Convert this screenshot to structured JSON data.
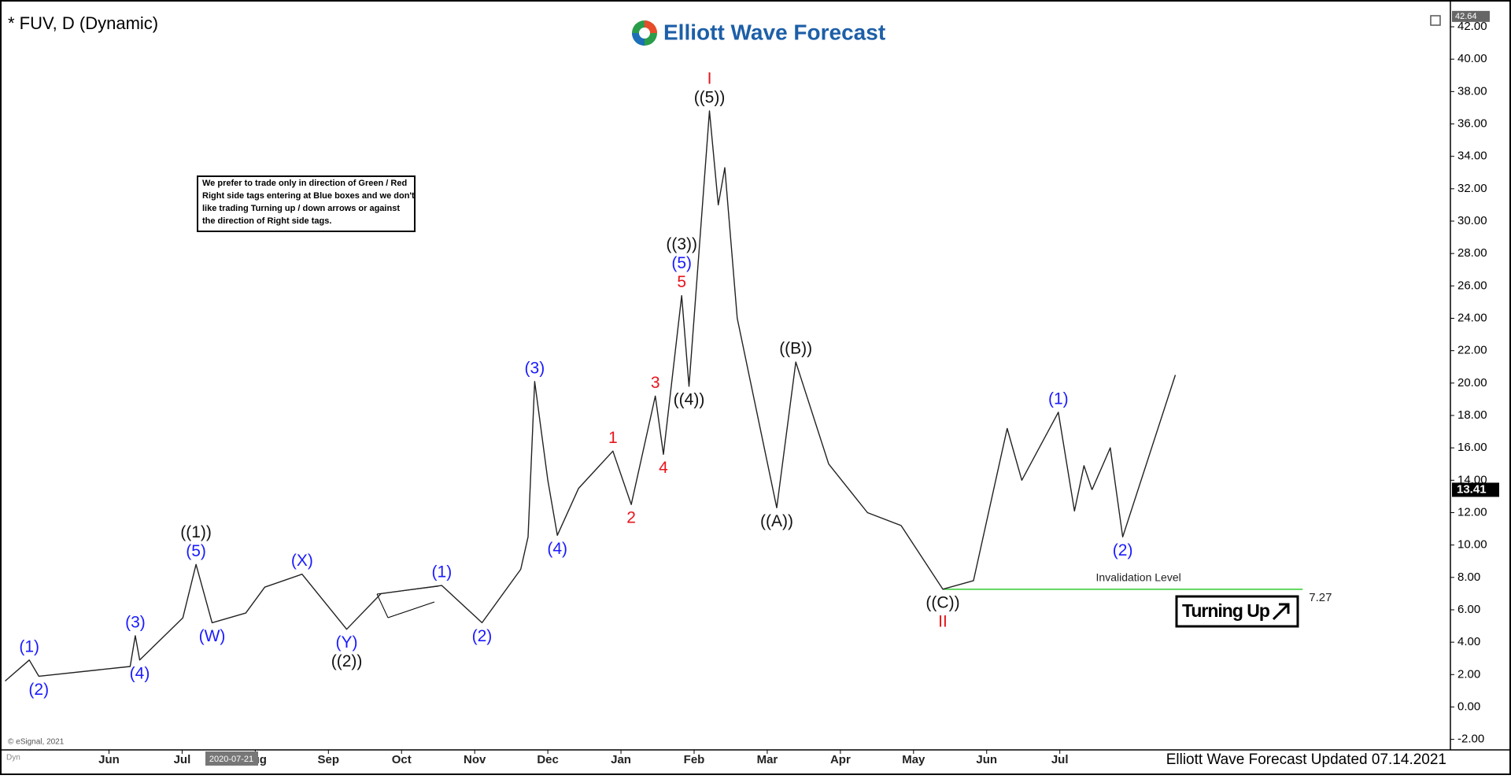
{
  "chart_data": {
    "type": "line",
    "title": "* FUV, D (Dynamic)",
    "brand": "Elliott Wave Forecast",
    "note": [
      "We prefer to trade only in direction of Green / Red",
      "Right side tags entering at Blue boxes and we don't",
      "like trading Turning up / down arrows or against",
      "the direction of Right side tags."
    ],
    "footer": "Elliott Wave Forecast Updated 07.14.2021",
    "source": "© eSignal, 2021",
    "mode_label": "Dyn",
    "cursor_label": "2020-07-21",
    "signal": "Turning Up",
    "xlim": [
      -1.49,
      18.34
    ],
    "xticks": [
      {
        "value": 0,
        "label": "Jun"
      },
      {
        "value": 1,
        "label": "Jul"
      },
      {
        "value": 2,
        "label": "Aug"
      },
      {
        "value": 3,
        "label": "Sep"
      },
      {
        "value": 4,
        "label": "Oct"
      },
      {
        "value": 5,
        "label": "Nov"
      },
      {
        "value": 6,
        "label": "Dec"
      },
      {
        "value": 7,
        "label": "Jan"
      },
      {
        "value": 8,
        "label": "Feb"
      },
      {
        "value": 9,
        "label": "Mar"
      },
      {
        "value": 10,
        "label": "Apr"
      },
      {
        "value": 11,
        "label": "May"
      },
      {
        "value": 12,
        "label": "Jun"
      },
      {
        "value": 13,
        "label": "Jul"
      }
    ],
    "ylim": [
      -2.65,
      43.07
    ],
    "yticks": [
      {
        "value": -2,
        "label": "-2.00"
      },
      {
        "value": 0,
        "label": "0.00"
      },
      {
        "value": 2,
        "label": "2.00"
      },
      {
        "value": 4,
        "label": "4.00"
      },
      {
        "value": 6,
        "label": "6.00"
      },
      {
        "value": 8,
        "label": "8.00"
      },
      {
        "value": 10,
        "label": "10.00"
      },
      {
        "value": 12,
        "label": "12.00"
      },
      {
        "value": 14,
        "label": "14.00"
      },
      {
        "value": 16,
        "label": "16.00"
      },
      {
        "value": 18,
        "label": "18.00"
      },
      {
        "value": 20,
        "label": "20.00"
      },
      {
        "value": 22,
        "label": "22.00"
      },
      {
        "value": 24,
        "label": "24.00"
      },
      {
        "value": 26,
        "label": "26.00"
      },
      {
        "value": 28,
        "label": "28.00"
      },
      {
        "value": 30,
        "label": "30.00"
      },
      {
        "value": 32,
        "label": "32.00"
      },
      {
        "value": 34,
        "label": "34.00"
      },
      {
        "value": 36,
        "label": "36.00"
      },
      {
        "value": 38,
        "label": "38.00"
      },
      {
        "value": 40,
        "label": "40.00"
      },
      {
        "value": 42,
        "label": "42.00"
      }
    ],
    "last_price": 13.41,
    "high_tag": 42.64,
    "invalidation": {
      "label": "Invalidation Level",
      "value": 7.27,
      "x": [
        11.4,
        16.32
      ],
      "color": "#33cc33"
    },
    "series": [
      {
        "color": "#222222",
        "x": [
          -1.42,
          -1.09,
          -0.96,
          0.29,
          0.36,
          0.42,
          1.01,
          1.19,
          1.41,
          1.87,
          2.13,
          2.64,
          3.25,
          3.72,
          4.55,
          5.1,
          5.63,
          5.73,
          5.82,
          6.0,
          6.13,
          6.42,
          6.89,
          7.14,
          7.47,
          7.58,
          7.83,
          7.93,
          8.21,
          8.33,
          8.42,
          8.59,
          9.13,
          9.39,
          9.84,
          10.37,
          10.83,
          11.4,
          11.82,
          12.28,
          12.48,
          12.98,
          13.2,
          13.33,
          13.44
        ],
        "values": [
          1.6,
          2.9,
          1.9,
          2.5,
          4.4,
          2.9,
          5.5,
          8.8,
          5.2,
          5.8,
          7.4,
          8.2,
          4.8,
          7.0,
          7.5,
          5.2,
          8.5,
          10.5,
          20.1,
          14,
          10.6,
          13.5,
          15.8,
          12.5,
          19.2,
          15.6,
          25.4,
          19.8,
          36.8,
          31,
          33.3,
          24,
          12.3,
          21.3,
          15,
          12,
          11.2,
          7.27,
          7.8,
          17.2,
          14,
          18.2,
          12.1,
          14.9,
          13.41
        ],
        "labels": [
          {
            "index": 1,
            "text": "(1)",
            "color": "#1a1aff",
            "side": "above"
          },
          {
            "index": 2,
            "text": "(2)",
            "color": "#1a1aff",
            "side": "below"
          },
          {
            "index": 4,
            "text": "(3)",
            "color": "#1a1aff",
            "side": "above"
          },
          {
            "index": 5,
            "text": "(4)",
            "color": "#1a1aff",
            "side": "below"
          },
          {
            "index": 7,
            "text": "(5)",
            "color": "#1a1aff",
            "side": "above"
          },
          {
            "index": 7,
            "text": "((1))",
            "color": "#111111",
            "side": "above"
          },
          {
            "index": 8,
            "text": "(W)",
            "color": "#1a1aff",
            "side": "below"
          },
          {
            "index": 11,
            "text": "(X)",
            "color": "#1a1aff",
            "side": "above"
          },
          {
            "index": 12,
            "text": "(Y)",
            "color": "#1a1aff",
            "side": "below"
          },
          {
            "index": 12,
            "text": "((2))",
            "color": "#111111",
            "side": "below"
          },
          {
            "index": 14,
            "text": "(1)",
            "color": "#1a1aff",
            "side": "above"
          },
          {
            "index": 15,
            "text": "(2)",
            "color": "#1a1aff",
            "side": "below"
          },
          {
            "index": 18,
            "text": "(3)",
            "color": "#1a1aff",
            "side": "above"
          },
          {
            "index": 20,
            "text": "(4)",
            "color": "#1a1aff",
            "side": "below"
          },
          {
            "index": 22,
            "text": "1",
            "color": "#e8141b",
            "side": "above"
          },
          {
            "index": 23,
            "text": "2",
            "color": "#e8141b",
            "side": "below"
          },
          {
            "index": 24,
            "text": "3",
            "color": "#e8141b",
            "side": "above"
          },
          {
            "index": 25,
            "text": "4",
            "color": "#e8141b",
            "side": "below"
          },
          {
            "index": 26,
            "text": "5",
            "color": "#e8141b",
            "side": "above"
          },
          {
            "index": 26,
            "text": "(5)",
            "color": "#1a1aff",
            "side": "above"
          },
          {
            "index": 26,
            "text": "((3))",
            "color": "#111111",
            "side": "above"
          },
          {
            "index": 27,
            "text": "((4))",
            "color": "#111111",
            "side": "below"
          },
          {
            "index": 28,
            "text": "((5))",
            "color": "#111111",
            "side": "above"
          },
          {
            "index": 28,
            "text": "I",
            "color": "#e8141b",
            "side": "above"
          },
          {
            "index": 32,
            "text": "((A))",
            "color": "#111111",
            "side": "below"
          },
          {
            "index": 33,
            "text": "((B))",
            "color": "#111111",
            "side": "above"
          },
          {
            "index": 37,
            "text": "((C))",
            "color": "#111111",
            "side": "below"
          },
          {
            "index": 37,
            "text": "II",
            "color": "#e8141b",
            "side": "below"
          },
          {
            "index": 41,
            "text": "(1)",
            "color": "#1a1aff",
            "side": "above"
          }
        ]
      },
      {
        "color": "#222222",
        "x": [
          13.44,
          13.69,
          13.86,
          14.58
        ],
        "values": [
          13.41,
          16,
          10.5,
          20.5
        ],
        "labels": [
          {
            "index": 2,
            "text": "(2)",
            "color": "#1a1aff",
            "side": "below"
          }
        ]
      }
    ]
  }
}
